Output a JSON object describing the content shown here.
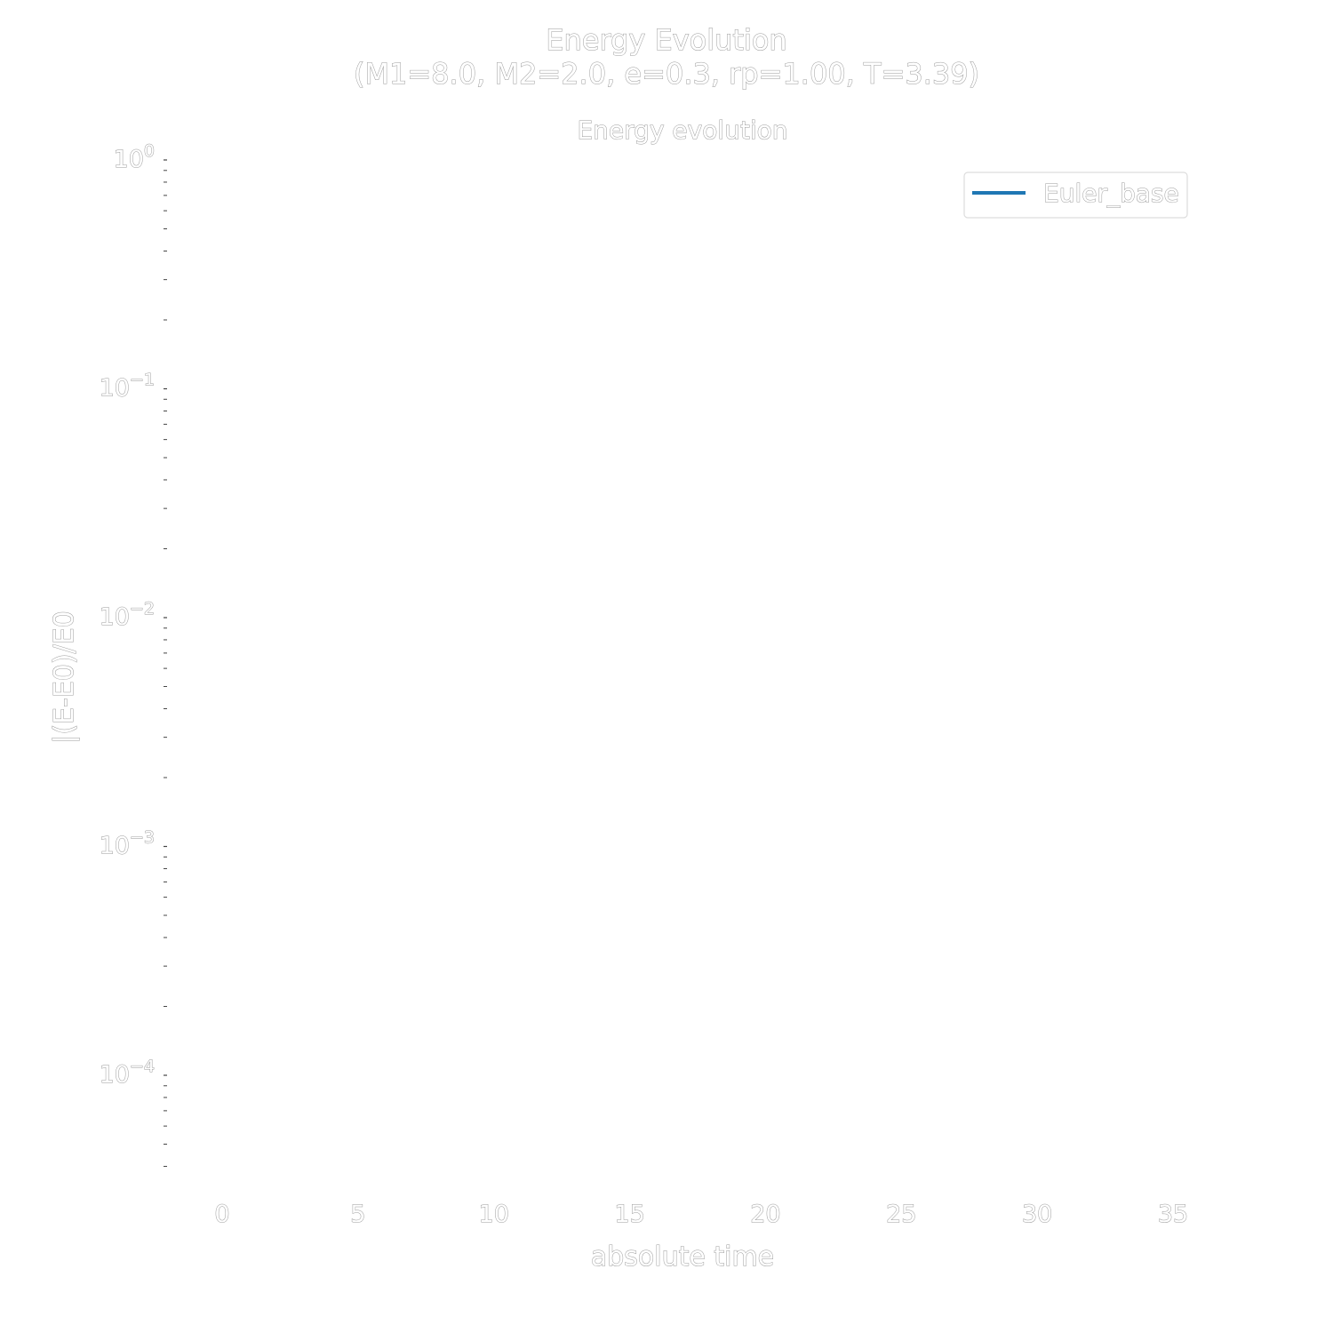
{
  "chart_data": {
    "type": "line",
    "suptitle_line1": "Energy  Evolution",
    "suptitle_line2": "(M1=8.0,  M2=2.0, e=0.3,  rp=1.00, T=3.39)",
    "title": "Energy evolution",
    "xlabel": "absolute time",
    "ylabel": "|(E-E0)/E0",
    "xlim": [
      -2,
      36
    ],
    "ylim": [
      4e-05,
      1
    ],
    "yscale": "log",
    "grid": false,
    "legend_position": "top-right",
    "xticks": [
      "0",
      "5",
      "10",
      "15",
      "20",
      "25",
      "30",
      "35"
    ],
    "xtick_values": [
      0,
      5,
      10,
      15,
      20,
      25,
      30,
      35
    ],
    "ytick_exponents": [
      "0",
      "−1",
      "−2",
      "−3",
      "−4"
    ],
    "ytick_values": [
      1,
      0.1,
      0.01,
      0.001,
      0.0001
    ],
    "ytick_base": "10",
    "series": [
      {
        "name": "Euler_base",
        "color": "#1f77b4",
        "x": [],
        "y": []
      }
    ]
  }
}
